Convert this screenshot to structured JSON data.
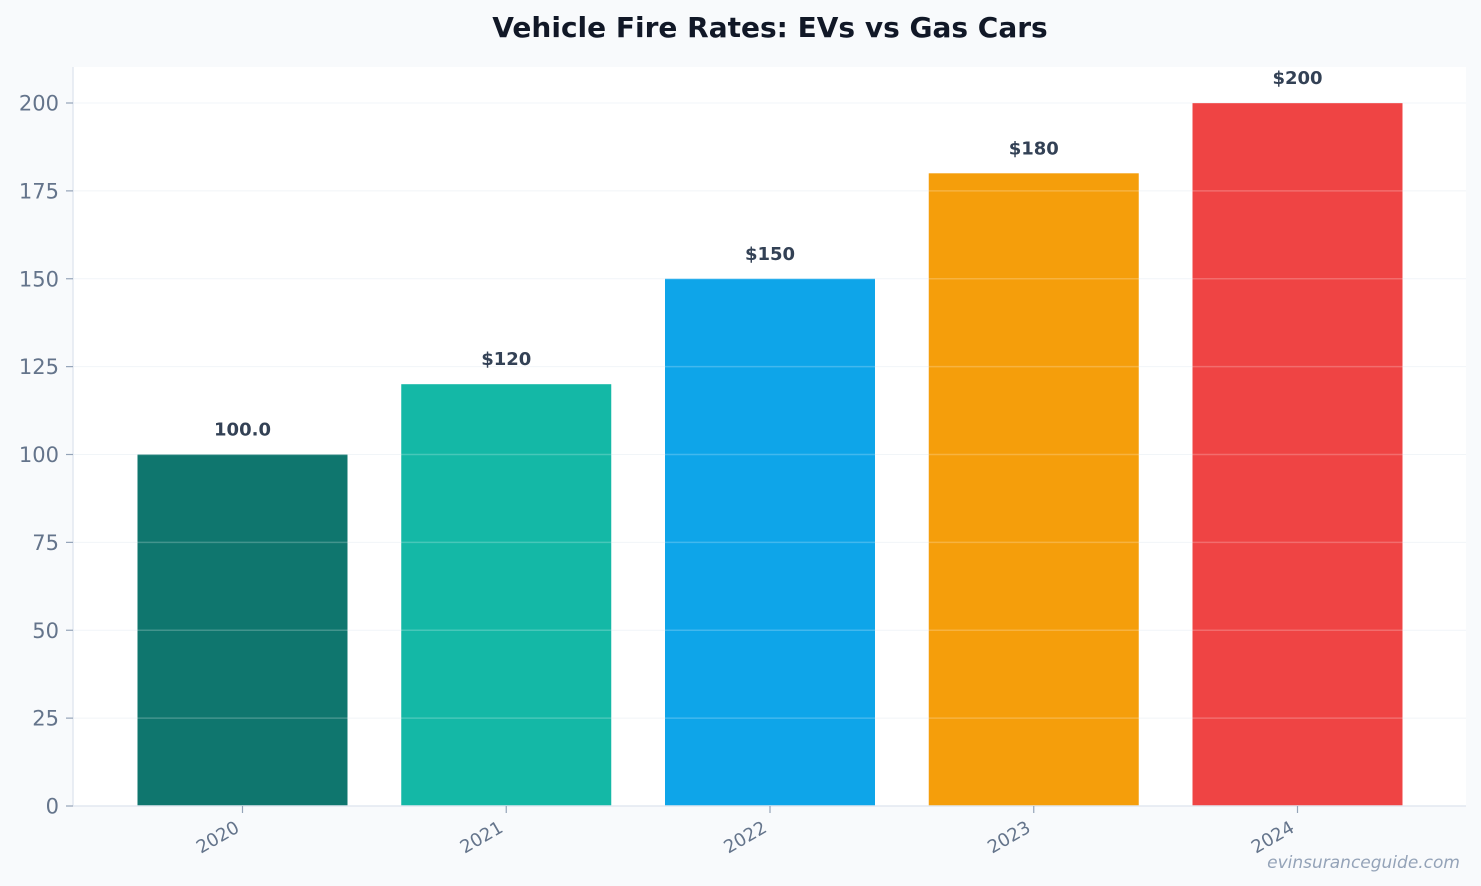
{
  "chart_data": {
    "type": "bar",
    "title": "Vehicle Fire Rates: EVs vs Gas Cars",
    "xlabel": "",
    "ylabel": "",
    "categories": [
      "2020",
      "2021",
      "2022",
      "2023",
      "2024"
    ],
    "values": [
      100,
      120,
      150,
      180,
      200
    ],
    "data_labels": [
      "100.0",
      "$120",
      "$150",
      "$180",
      "$200"
    ],
    "bar_colors": [
      "#0f766e",
      "#14b8a6",
      "#0ea5e9",
      "#f59e0b",
      "#ef4444"
    ],
    "ylim": [
      0,
      210
    ],
    "yticks": [
      0,
      25,
      50,
      75,
      100,
      125,
      150,
      175,
      200
    ],
    "ytick_labels": [
      "0",
      "25",
      "50",
      "75",
      "100",
      "125",
      "150",
      "175",
      "200"
    ],
    "grid": true,
    "legend": "none"
  },
  "watermark": "evinsuranceguide.com"
}
